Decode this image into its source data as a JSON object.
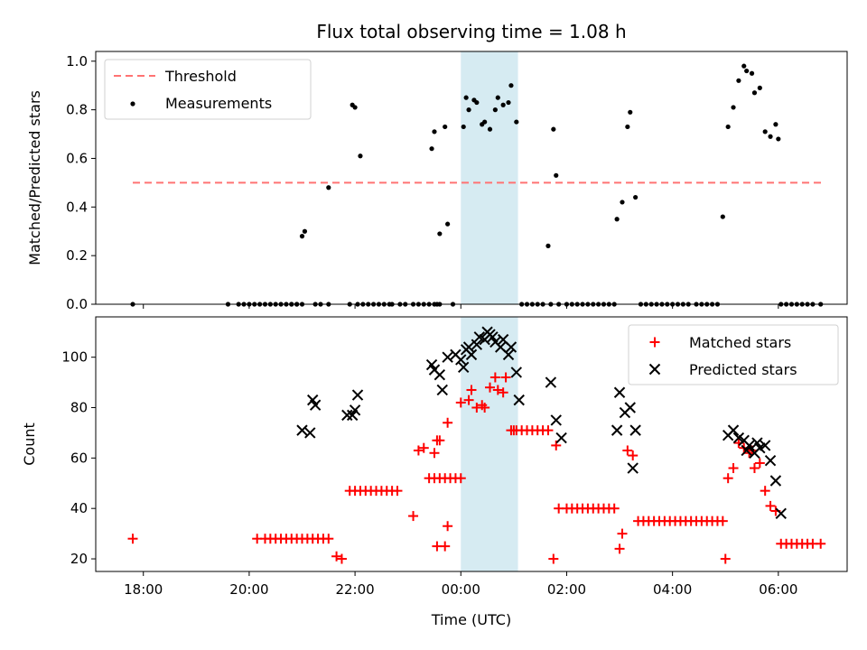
{
  "chart_data": [
    {
      "type": "scatter",
      "title": "Flux total observing time = 1.08 h",
      "xlabel": "",
      "ylabel": "Matched/Predicted stars",
      "xlim_hours": [
        -6.9,
        7.3
      ],
      "ylim": [
        0,
        1.04
      ],
      "yticks": [
        "0.0",
        "0.2",
        "0.4",
        "0.6",
        "0.8",
        "1.0"
      ],
      "legend_position": "upper left",
      "highlight_span_hours": [
        0.0,
        1.08
      ],
      "highlight_color": "#add8e6",
      "series": [
        {
          "name": "Threshold",
          "kind": "dashed-line",
          "color": "#ff7373",
          "x": [
            -6.2,
            6.85
          ],
          "y": [
            0.5,
            0.5
          ]
        },
        {
          "name": "Measurements",
          "kind": "dots",
          "color": "#000000",
          "x": [
            -6.2,
            -4.4,
            -4.2,
            -4.1,
            -4.0,
            -3.9,
            -3.8,
            -3.7,
            -3.6,
            -3.5,
            -3.4,
            -3.3,
            -3.2,
            -3.1,
            -3.0,
            -2.75,
            -2.65,
            -2.1,
            -1.95,
            -1.85,
            -1.75,
            -1.65,
            -1.55,
            -1.45,
            -1.35,
            -1.3,
            -1.15,
            -1.05,
            -0.9,
            -0.8,
            -0.7,
            -0.6,
            -0.5,
            -0.4,
            -0.55,
            -0.5,
            -2.5,
            -2.5,
            -2.05,
            -2.0,
            -1.9,
            -3.2,
            -3.1,
            -3.0,
            -2.95,
            -0.25,
            -0.45,
            -0.4,
            -0.3,
            -0.15,
            0.05,
            0.1,
            0.15,
            0.25,
            0.3,
            0.4,
            0.45,
            0.55,
            0.65,
            0.7,
            0.8,
            0.9,
            0.95,
            1.05,
            1.15,
            1.25,
            1.35,
            1.45,
            1.55,
            1.65,
            1.7,
            1.75,
            1.8,
            1.85,
            2.0,
            2.1,
            2.2,
            2.3,
            2.4,
            2.5,
            2.6,
            2.7,
            2.8,
            2.9,
            2.95,
            3.05,
            3.15,
            3.2,
            3.3,
            3.4,
            3.5,
            3.6,
            3.7,
            3.8,
            3.9,
            4.0,
            4.1,
            4.2,
            4.3,
            4.45,
            4.55,
            4.65,
            4.75,
            4.85,
            4.95,
            5.05,
            5.15,
            5.25,
            5.35,
            5.4,
            5.5,
            5.55,
            5.65,
            5.75,
            5.85,
            5.95,
            6.0,
            6.05,
            6.15,
            6.25,
            6.35,
            6.45,
            6.55,
            6.65,
            6.8
          ],
          "y": [
            0.0,
            0.0,
            0.0,
            0.0,
            0.0,
            0.0,
            0.0,
            0.0,
            0.0,
            0.0,
            0.0,
            0.0,
            0.0,
            0.0,
            0.0,
            0.0,
            0.0,
            0.0,
            0.0,
            0.0,
            0.0,
            0.0,
            0.0,
            0.0,
            0.0,
            0.0,
            0.0,
            0.0,
            0.0,
            0.0,
            0.0,
            0.0,
            0.0,
            0.0,
            0.64,
            0.71,
            0.0,
            0.48,
            0.82,
            0.81,
            0.61,
            0.0,
            0.0,
            0.28,
            0.3,
            0.33,
            0.0,
            0.29,
            0.73,
            0.0,
            0.73,
            0.85,
            0.8,
            0.84,
            0.83,
            0.74,
            0.75,
            0.72,
            0.8,
            0.85,
            0.82,
            0.83,
            0.9,
            0.75,
            0.0,
            0.0,
            0.0,
            0.0,
            0.0,
            0.24,
            0.0,
            0.72,
            0.53,
            0.0,
            0.0,
            0.0,
            0.0,
            0.0,
            0.0,
            0.0,
            0.0,
            0.0,
            0.0,
            0.0,
            0.35,
            0.42,
            0.73,
            0.79,
            0.44,
            0.0,
            0.0,
            0.0,
            0.0,
            0.0,
            0.0,
            0.0,
            0.0,
            0.0,
            0.0,
            0.0,
            0.0,
            0.0,
            0.0,
            0.0,
            0.36,
            0.73,
            0.81,
            0.92,
            0.98,
            0.96,
            0.95,
            0.87,
            0.89,
            0.71,
            0.69,
            0.74,
            0.68,
            0.0,
            0.0,
            0.0,
            0.0,
            0.0,
            0.0,
            0.0,
            0.0
          ]
        }
      ]
    },
    {
      "type": "scatter",
      "title": "",
      "xlabel": "Time (UTC)",
      "ylabel": "Count",
      "xlim_hours": [
        -6.9,
        7.3
      ],
      "ylim": [
        15,
        116
      ],
      "yticks": [
        "20",
        "40",
        "60",
        "80",
        "100"
      ],
      "xticks": [
        "18:00",
        "20:00",
        "22:00",
        "00:00",
        "02:00",
        "04:00",
        "06:00"
      ],
      "xtick_hours": [
        -6,
        -4,
        -2,
        0,
        2,
        4,
        6
      ],
      "legend_position": "upper right",
      "highlight_span_hours": [
        0.0,
        1.08
      ],
      "highlight_color": "#add8e6",
      "series": [
        {
          "name": "Matched stars",
          "marker": "plus",
          "color": "#ff0000",
          "x": [
            -6.2,
            -3.85,
            -3.7,
            -3.6,
            -3.5,
            -3.4,
            -3.3,
            -3.2,
            -3.1,
            -3.0,
            -2.9,
            -2.8,
            -2.7,
            -2.6,
            -2.5,
            -2.35,
            -2.25,
            -2.1,
            -2.0,
            -1.9,
            -1.8,
            -1.7,
            -1.6,
            -1.5,
            -1.4,
            -1.3,
            -1.2,
            -0.9,
            -0.8,
            -0.7,
            -0.6,
            -0.5,
            -0.4,
            -0.3,
            -0.2,
            -0.1,
            0.0,
            -0.5,
            -0.45,
            -0.45,
            -0.4,
            -0.3,
            -0.25,
            -0.25,
            0.0,
            0.15,
            0.2,
            0.3,
            0.4,
            0.45,
            0.55,
            0.65,
            0.7,
            0.8,
            0.85,
            0.95,
            1.0,
            1.05,
            1.15,
            1.25,
            1.35,
            1.45,
            1.55,
            1.65,
            1.75,
            1.8,
            1.85,
            2.0,
            2.1,
            2.2,
            2.3,
            2.4,
            2.5,
            2.6,
            2.7,
            2.8,
            2.9,
            3.0,
            3.05,
            3.15,
            3.25,
            3.35,
            3.45,
            3.55,
            3.65,
            3.75,
            3.85,
            3.95,
            4.05,
            4.15,
            4.25,
            4.35,
            4.45,
            4.55,
            4.65,
            4.75,
            4.85,
            4.95,
            5.0,
            5.05,
            5.15,
            5.25,
            5.35,
            5.45,
            5.5,
            5.55,
            5.65,
            5.75,
            5.85,
            5.95,
            6.05,
            6.15,
            6.25,
            6.35,
            6.45,
            6.55,
            6.65,
            6.8
          ],
          "y": [
            28,
            28,
            28,
            28,
            28,
            28,
            28,
            28,
            28,
            28,
            28,
            28,
            28,
            28,
            28,
            21,
            20,
            47,
            47,
            47,
            47,
            47,
            47,
            47,
            47,
            47,
            47,
            37,
            63,
            64,
            52,
            52,
            52,
            52,
            52,
            52,
            52,
            62,
            67,
            25,
            67,
            25,
            33,
            74,
            82,
            83,
            87,
            80,
            81,
            80,
            88,
            92,
            87,
            86,
            92,
            71,
            71,
            71,
            71,
            71,
            71,
            71,
            71,
            71,
            20,
            65,
            40,
            40,
            40,
            40,
            40,
            40,
            40,
            40,
            40,
            40,
            40,
            24,
            30,
            63,
            61,
            35,
            35,
            35,
            35,
            35,
            35,
            35,
            35,
            35,
            35,
            35,
            35,
            35,
            35,
            35,
            35,
            35,
            20,
            52,
            56,
            66,
            64,
            62,
            63,
            56,
            58,
            47,
            41,
            39,
            26,
            26,
            26,
            26,
            26,
            26,
            26,
            26
          ]
        },
        {
          "name": "Predicted stars",
          "marker": "x",
          "color": "#000000",
          "x": [
            -3.0,
            -2.85,
            -2.8,
            -2.75,
            -2.15,
            -2.05,
            -2.0,
            -1.95,
            -0.55,
            -0.5,
            -0.4,
            -0.35,
            -0.25,
            -0.1,
            0.0,
            0.05,
            0.1,
            0.15,
            0.2,
            0.3,
            0.35,
            0.45,
            0.5,
            0.55,
            0.6,
            0.65,
            0.75,
            0.8,
            0.9,
            0.95,
            1.05,
            1.1,
            1.7,
            1.8,
            1.9,
            2.95,
            3.0,
            3.1,
            3.2,
            3.25,
            3.3,
            5.05,
            5.15,
            5.25,
            5.35,
            5.4,
            5.45,
            5.55,
            5.6,
            5.65,
            5.75,
            5.85,
            5.95,
            6.05
          ],
          "y": [
            71,
            70,
            83,
            81,
            77,
            77,
            79,
            85,
            97,
            95,
            93,
            87,
            100,
            101,
            99,
            96,
            103,
            104,
            101,
            105,
            108,
            107,
            110,
            109,
            108,
            106,
            104,
            107,
            101,
            104,
            94,
            83,
            90,
            75,
            68,
            71,
            86,
            78,
            80,
            56,
            71,
            69,
            71,
            68,
            67,
            63,
            65,
            62,
            66,
            64,
            65,
            59,
            51,
            38
          ]
        }
      ]
    }
  ]
}
